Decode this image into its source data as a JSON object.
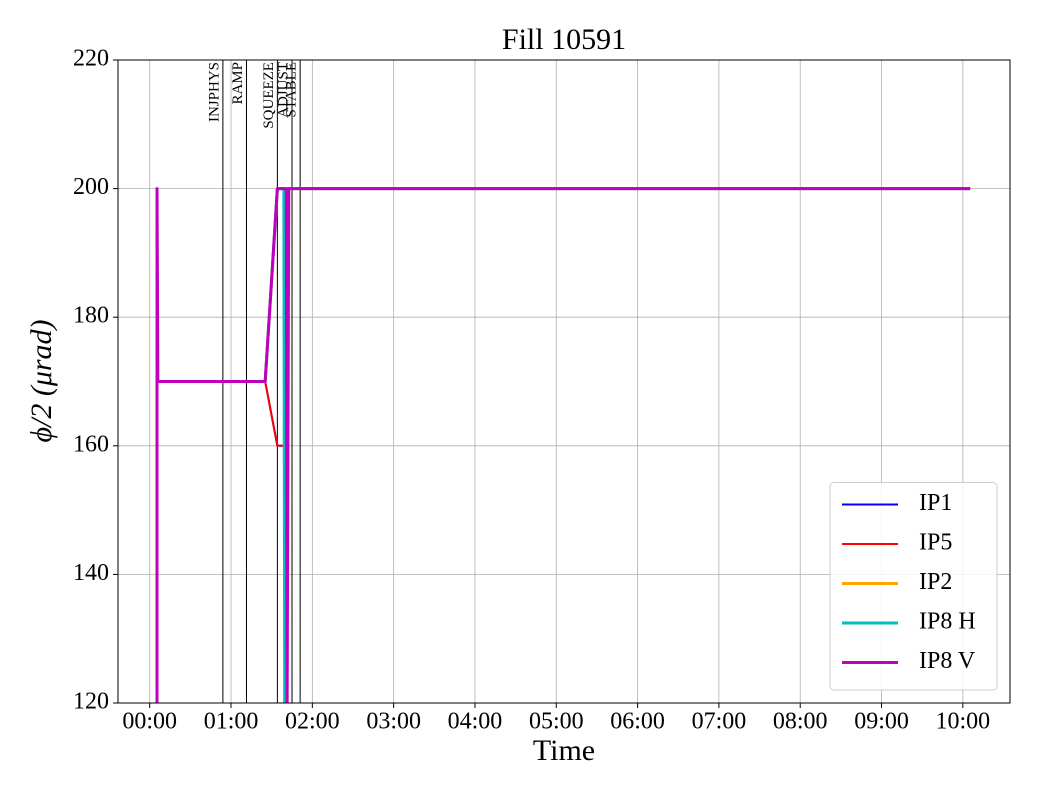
{
  "chart_data": {
    "type": "line",
    "title": "Fill 10591",
    "xlabel": "Time",
    "ylabel": "ϕ/2 (μrad)",
    "xlim": [
      -0.39,
      10.58
    ],
    "ylim": [
      120,
      220
    ],
    "xticks": [
      {
        "value": 0,
        "label": "00:00"
      },
      {
        "value": 1,
        "label": "01:00"
      },
      {
        "value": 2,
        "label": "02:00"
      },
      {
        "value": 3,
        "label": "03:00"
      },
      {
        "value": 4,
        "label": "04:00"
      },
      {
        "value": 5,
        "label": "05:00"
      },
      {
        "value": 6,
        "label": "06:00"
      },
      {
        "value": 7,
        "label": "07:00"
      },
      {
        "value": 8,
        "label": "08:00"
      },
      {
        "value": 9,
        "label": "09:00"
      },
      {
        "value": 10,
        "label": "10:00"
      }
    ],
    "yticks": [
      120,
      140,
      160,
      180,
      200,
      220
    ],
    "grid": true,
    "legend": "lower right",
    "phases": [
      {
        "label": "INJPHYS",
        "x": 0.9
      },
      {
        "label": "RAMP",
        "x": 1.19
      },
      {
        "label": "SQUEEZE",
        "x": 1.57
      },
      {
        "label": "ADJUST",
        "x": 1.75
      },
      {
        "label": "STABLE",
        "x": 1.85
      }
    ],
    "series": [
      {
        "name": "IP1",
        "color": "#0000ff",
        "width": 2,
        "x": [
          0.1,
          1.42,
          1.57,
          1.66,
          1.67,
          1.7,
          10.09
        ],
        "values": [
          170,
          170,
          160,
          160,
          120,
          200,
          200
        ]
      },
      {
        "name": "IP5",
        "color": "#ff0000",
        "width": 2,
        "x": [
          0.1,
          1.42,
          1.57,
          1.66,
          1.67,
          1.7,
          10.09
        ],
        "values": [
          170,
          170,
          160,
          160,
          120,
          200,
          200
        ]
      },
      {
        "name": "IP2",
        "color": "#ffa500",
        "width": 3,
        "x": [
          0.1,
          1.42,
          1.57,
          1.72,
          10.09
        ],
        "values": [
          170,
          170,
          200,
          200,
          200
        ]
      },
      {
        "name": "IP8 H",
        "color": "#00bfbf",
        "width": 3,
        "x": [
          0.1,
          1.42,
          1.57,
          1.65,
          1.66,
          1.7,
          10.09
        ],
        "values": [
          170,
          170,
          200,
          200,
          120,
          200,
          200
        ]
      },
      {
        "name": "IP8 V",
        "color": "#bf00bf",
        "width": 3,
        "x": [
          0.09,
          0.09,
          0.1,
          1.42,
          1.57,
          1.68,
          1.69,
          1.71,
          10.09
        ],
        "values": [
          120,
          200,
          170,
          170,
          200,
          200,
          120,
          200,
          200
        ]
      }
    ]
  }
}
